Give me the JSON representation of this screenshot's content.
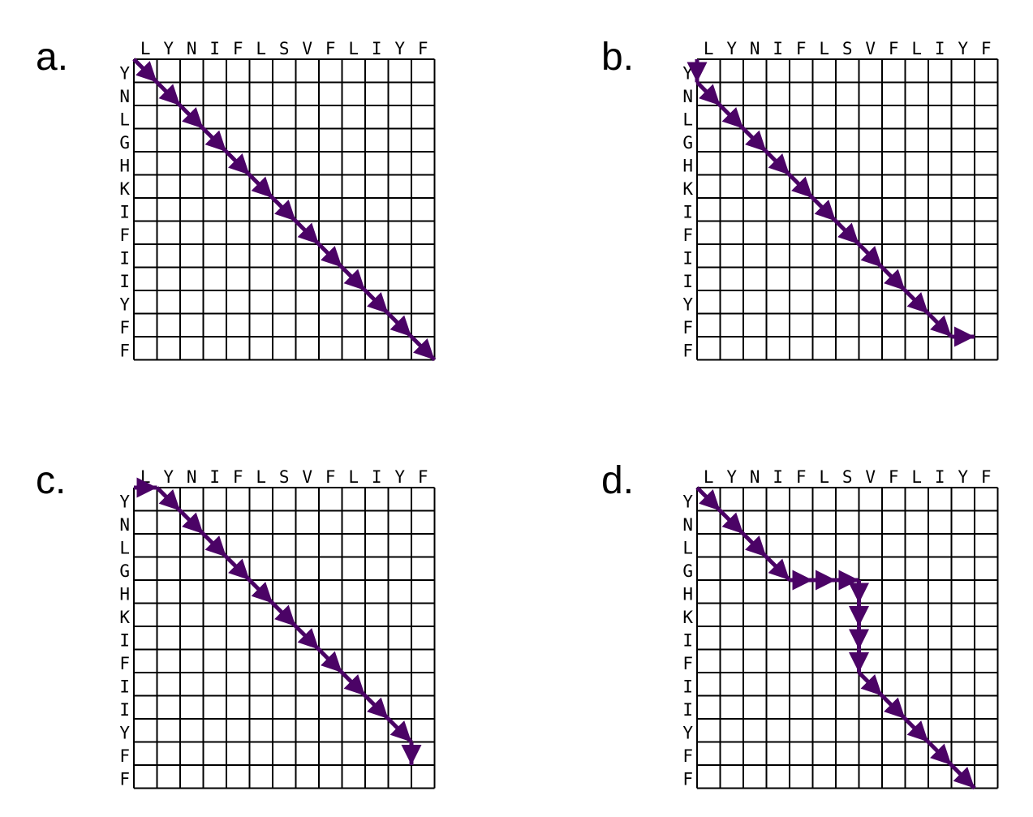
{
  "path_color": "#4b0366",
  "top_sequence": [
    "L",
    "Y",
    "N",
    "I",
    "F",
    "L",
    "S",
    "V",
    "F",
    "L",
    "I",
    "Y",
    "F"
  ],
  "side_sequence": [
    "Y",
    "N",
    "L",
    "G",
    "H",
    "K",
    "I",
    "F",
    "I",
    "I",
    "Y",
    "F",
    "F"
  ],
  "panels": [
    {
      "label": "a.",
      "moves": [
        "D",
        "D",
        "D",
        "D",
        "D",
        "D",
        "D",
        "D",
        "D",
        "D",
        "D",
        "D",
        "D"
      ]
    },
    {
      "label": "b.",
      "moves": [
        "V",
        "D",
        "D",
        "D",
        "D",
        "D",
        "D",
        "D",
        "D",
        "D",
        "D",
        "D",
        "H"
      ]
    },
    {
      "label": "c.",
      "moves": [
        "H",
        "D",
        "D",
        "D",
        "D",
        "D",
        "D",
        "D",
        "D",
        "D",
        "D",
        "D",
        "V"
      ]
    },
    {
      "label": "d.",
      "moves": [
        "D",
        "D",
        "D",
        "D",
        "H",
        "H",
        "H",
        "V",
        "V",
        "V",
        "V",
        "D",
        "D",
        "D",
        "D",
        "D"
      ]
    }
  ]
}
